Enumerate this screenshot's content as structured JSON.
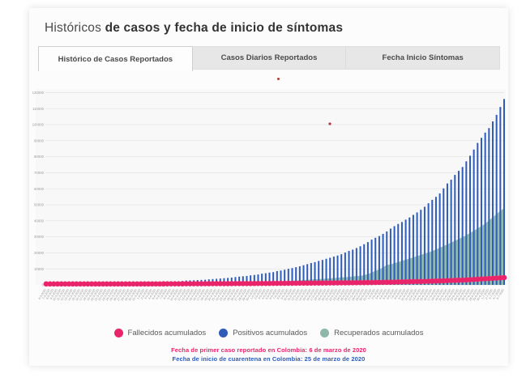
{
  "page": {
    "title_light": "Históricos",
    "title_bold": "de casos y fecha de inicio de síntomas"
  },
  "tabs": [
    {
      "label": "Histórico de Casos Reportados",
      "active": true
    },
    {
      "label": "Casos Diarios Reportados",
      "active": false
    },
    {
      "label": "Fecha Inicio Síntomas",
      "active": false
    }
  ],
  "notes": {
    "first_case": "Fecha de primer caso reportado en Colombia: 6 de marzo de 2020",
    "quarantine": "Fecha de inicio de cuarentena en Colombia: 25 de marzo de 2020"
  },
  "colors": {
    "fallecidos": "#e9246b",
    "positivos": "#2e5cb8",
    "recuperados": "#8db8a8",
    "grid": "#e2e2e4",
    "axis_text": "#9b9b9b"
  },
  "chart_data": {
    "type": "bar",
    "title": "",
    "xlabel": "",
    "ylabel": "",
    "ylim": [
      0,
      120000
    ],
    "y_ticks": [
      0,
      10000,
      20000,
      30000,
      40000,
      50000,
      60000,
      70000,
      80000,
      90000,
      100000,
      110000,
      120000
    ],
    "grid": true,
    "legend_position": "bottom",
    "categories": [
      "6-3-2020",
      "7-3-2020",
      "8-3-2020",
      "9-3-2020",
      "10-3-2020",
      "11-3-2020",
      "12-3-2020",
      "13-3-2020",
      "14-3-2020",
      "15-3-2020",
      "16-3-2020",
      "17-3-2020",
      "18-3-2020",
      "19-3-2020",
      "20-3-2020",
      "21-3-2020",
      "22-3-2020",
      "23-3-2020",
      "24-3-2020",
      "25-3-2020",
      "26-3-2020",
      "27-3-2020",
      "28-3-2020",
      "29-3-2020",
      "30-3-2020",
      "31-3-2020",
      "1-4-2020",
      "2-4-2020",
      "3-4-2020",
      "4-4-2020",
      "5-4-2020",
      "6-4-2020",
      "7-4-2020",
      "8-4-2020",
      "9-4-2020",
      "10-4-2020",
      "11-4-2020",
      "12-4-2020",
      "13-4-2020",
      "14-4-2020",
      "15-4-2020",
      "16-4-2020",
      "17-4-2020",
      "18-4-2020",
      "19-4-2020",
      "20-4-2020",
      "21-4-2020",
      "22-4-2020",
      "23-4-2020",
      "24-4-2020",
      "25-4-2020",
      "26-4-2020",
      "27-4-2020",
      "28-4-2020",
      "29-4-2020",
      "30-4-2020",
      "1-5-2020",
      "2-5-2020",
      "3-5-2020",
      "4-5-2020",
      "5-5-2020",
      "6-5-2020",
      "7-5-2020",
      "8-5-2020",
      "9-5-2020",
      "10-5-2020",
      "11-5-2020",
      "12-5-2020",
      "13-5-2020",
      "14-5-2020",
      "15-5-2020",
      "16-5-2020",
      "17-5-2020",
      "18-5-2020",
      "19-5-2020",
      "20-5-2020",
      "21-5-2020",
      "22-5-2020",
      "23-5-2020",
      "24-5-2020",
      "25-5-2020",
      "26-5-2020",
      "27-5-2020",
      "28-5-2020",
      "29-5-2020",
      "30-5-2020",
      "31-5-2020",
      "1-6-2020",
      "2-6-2020",
      "3-6-2020",
      "4-6-2020",
      "5-6-2020",
      "6-6-2020",
      "7-6-2020",
      "8-6-2020",
      "9-6-2020",
      "10-6-2020",
      "11-6-2020",
      "12-6-2020",
      "13-6-2020",
      "14-6-2020",
      "15-6-2020",
      "16-6-2020",
      "17-6-2020",
      "18-6-2020",
      "19-6-2020",
      "20-6-2020",
      "21-6-2020",
      "22-6-2020",
      "23-6-2020",
      "24-6-2020",
      "25-6-2020",
      "26-6-2020",
      "27-6-2020",
      "28-6-2020",
      "29-6-2020",
      "30-6-2020",
      "1-7-2020",
      "2-7-2020",
      "3-7-2020",
      "4-7-2020",
      "5-7-2020"
    ],
    "series": [
      {
        "name": "Fallecidos acumulados",
        "render": "scatter",
        "color": "#e9246b",
        "values": [
          0,
          0,
          0,
          0,
          0,
          0,
          0,
          0,
          0,
          0,
          1,
          1,
          1,
          1,
          1,
          2,
          3,
          3,
          3,
          3,
          4,
          6,
          6,
          10,
          10,
          14,
          16,
          17,
          19,
          25,
          32,
          35,
          46,
          50,
          54,
          69,
          80,
          100,
          109,
          112,
          127,
          131,
          144,
          153,
          166,
          179,
          189,
          196,
          206,
          215,
          225,
          233,
          244,
          253,
          269,
          278,
          293,
          314,
          324,
          340,
          358,
          378,
          397,
          407,
          428,
          445,
          463,
          479,
          493,
          509,
          525,
          546,
          562,
          574,
          592,
          613,
          630,
          652,
          682,
          705,
          727,
          750,
          776,
          803,
          822,
          853,
          890,
          939,
          969,
          1009,
          1045,
          1087,
          1145,
          1205,
          1259,
          1308,
          1372,
          1433,
          1488,
          1545,
          1592,
          1667,
          1726,
          1801,
          1864,
          1950,
          2045,
          2126,
          2237,
          2310,
          2404,
          2491,
          2654,
          2753,
          2939,
          3106,
          3223,
          3334,
          3470,
          3641,
          3777,
          3942
        ]
      },
      {
        "name": "Positivos acumulados",
        "render": "bar",
        "color": "#2e5cb8",
        "values": [
          1,
          1,
          1,
          3,
          3,
          9,
          9,
          16,
          22,
          34,
          54,
          65,
          93,
          102,
          128,
          196,
          231,
          277,
          306,
          378,
          470,
          491,
          539,
          608,
          702,
          798,
          906,
          1065,
          1161,
          1267,
          1406,
          1485,
          1579,
          1780,
          2054,
          2223,
          2473,
          2709,
          2776,
          2852,
          2979,
          3105,
          3233,
          3439,
          3621,
          3792,
          3977,
          4149,
          4356,
          4561,
          4881,
          5142,
          5379,
          5597,
          5949,
          6207,
          6507,
          7006,
          7285,
          7668,
          7973,
          8613,
          8959,
          9456,
          10051,
          10495,
          11063,
          11613,
          12272,
          12930,
          13610,
          14216,
          14939,
          15574,
          16295,
          16935,
          17687,
          18330,
          19131,
          20177,
          21175,
          21981,
          23003,
          24104,
          25366,
          26688,
          28236,
          29383,
          30493,
          31833,
          33354,
          35120,
          36635,
          38027,
          39236,
          40719,
          42078,
          43682,
          45212,
          46858,
          48746,
          50939,
          53063,
          54931,
          57046,
          60217,
          63276,
          65633,
          68652,
          71183,
          73572,
          77113,
          80599,
          84442,
          88591,
          91769,
          95043,
          97846,
          102009,
          106110,
          111000,
          116000
        ]
      },
      {
        "name": "Recuperados acumulados",
        "render": "area",
        "color": "#8db8a8",
        "values": [
          0,
          0,
          0,
          0,
          0,
          0,
          0,
          0,
          0,
          0,
          0,
          0,
          0,
          0,
          0,
          0,
          3,
          3,
          6,
          6,
          8,
          8,
          10,
          10,
          15,
          15,
          31,
          39,
          55,
          55,
          85,
          88,
          88,
          100,
          123,
          174,
          197,
          214,
          270,
          319,
          354,
          452,
          550,
          634,
          711,
          735,
          804,
          874,
          940,
          1003,
          1003,
          1067,
          1133,
          1210,
          1268,
          1439,
          1439,
          1551,
          1666,
          1722,
          1807,
          2013,
          2148,
          2300,
          2424,
          2569,
          2705,
          2825,
          2971,
          3133,
          3358,
          3460,
          3587,
          3751,
          3903,
          4050,
          4256,
          4431,
          4718,
          4718,
          5016,
          5265,
          5511,
          5511,
          6111,
          6687,
          7751,
          8756,
          9661,
          10938,
          12488,
          12714,
          13638,
          14100,
          15004,
          15700,
          16427,
          17100,
          18000,
          18715,
          19426,
          20200,
          21100,
          22100,
          23150,
          24200,
          25300,
          26400,
          27500,
          28600,
          29800,
          31000,
          32400,
          33800,
          35200,
          36700,
          38200,
          40200,
          42200,
          44200,
          46100,
          47961
        ]
      }
    ]
  }
}
